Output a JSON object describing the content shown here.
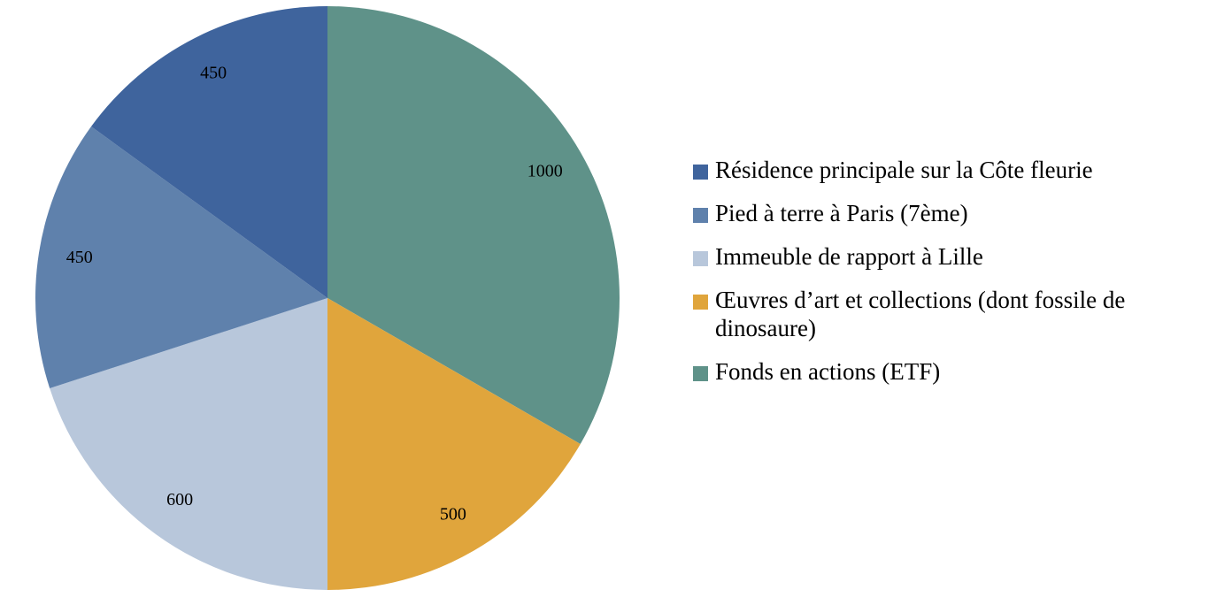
{
  "chart_data": {
    "type": "pie",
    "title": "",
    "slices": [
      {
        "label": "Fonds en actions (ETF)",
        "value": 1000,
        "color": "#5f9289"
      },
      {
        "label": "Œuvres d’art et collections (dont fossile de dinosaure)",
        "value": 500,
        "color": "#e0a53c"
      },
      {
        "label": "Immeuble de rapport à Lille",
        "value": 600,
        "color": "#b8c7db"
      },
      {
        "label": "Pied à terre à Paris (7ème)",
        "value": 450,
        "color": "#5f81ac"
      },
      {
        "label": "Résidence principale sur la Côte fleurie",
        "value": 450,
        "color": "#3f649d"
      }
    ],
    "start_angle_deg": 0,
    "direction": "clockwise",
    "data_labels": true,
    "legend_position": "right",
    "legend_order": [
      "Résidence principale sur la Côte fleurie",
      "Pied à terre à Paris (7ème)",
      "Immeuble de rapport à Lille",
      "Œuvres d’art et collections (dont fossile de dinosaure)",
      "Fonds en actions (ETF)"
    ]
  },
  "legend": {
    "items": [
      {
        "label": "Résidence principale sur la Côte fleurie",
        "color": "#3f649d"
      },
      {
        "label": "Pied à terre à Paris (7ème)",
        "color": "#5f81ac"
      },
      {
        "label": "Immeuble de rapport à Lille",
        "color": "#b8c7db"
      },
      {
        "label": "Œuvres d’art et collections (dont fossile de dinosaure)",
        "color": "#e0a53c"
      },
      {
        "label": "Fonds en actions (ETF)",
        "color": "#5f9289"
      }
    ]
  }
}
